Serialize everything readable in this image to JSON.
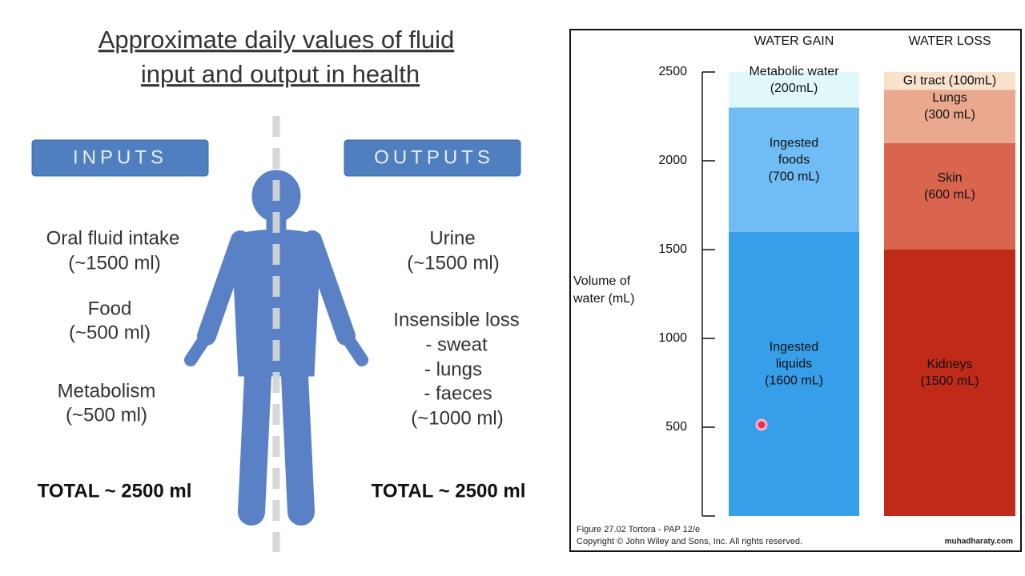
{
  "slide": {
    "title": [
      "Approximate daily values of fluid",
      "input and output in health"
    ],
    "inputs": {
      "heading": "INPUTS",
      "items": [
        [
          "Oral fluid intake",
          "(~1500 ml)"
        ],
        [
          "Food",
          "(~500 ml)"
        ],
        [
          "Metabolism",
          "(~500 ml)"
        ]
      ],
      "total": "TOTAL ~ 2500 ml"
    },
    "outputs": {
      "heading": "OUTPUTS",
      "items": [
        [
          "Urine",
          "(~1500 ml)"
        ],
        [
          "Insensible loss",
          "- sweat",
          "- lungs",
          "- faeces",
          "(~1000 ml)"
        ]
      ],
      "total": "TOTAL ~ 2500 ml"
    }
  },
  "chart_data": {
    "type": "stacked-bar",
    "categories": [
      "WATER GAIN",
      "WATER LOSS"
    ],
    "y_label": [
      "Volume of",
      "water (mL)"
    ],
    "ylim": [
      0,
      2500
    ],
    "yticks": [
      500,
      1000,
      1500,
      2000,
      2500
    ],
    "stacks": [
      [
        {
          "label": [
            "Ingested",
            "liquids",
            "(1600 mL)"
          ],
          "value": 1600,
          "color": "#379fe9"
        },
        {
          "label": [
            "Ingested",
            "foods",
            "(700 mL)"
          ],
          "value": 700,
          "color": "#70bcf5"
        },
        {
          "label": [
            "Metabolic water",
            "(200mL)"
          ],
          "value": 200,
          "color": "#e1f8fb"
        }
      ],
      [
        {
          "label": [
            "Kidneys",
            "(1500 mL)"
          ],
          "value": 1500,
          "color": "#bf2a19"
        },
        {
          "label": [
            "Skin",
            "(600 mL)"
          ],
          "value": 600,
          "color": "#d9654f"
        },
        {
          "label": [
            "Lungs",
            "(300 mL)"
          ],
          "value": 300,
          "color": "#eaa98f"
        },
        {
          "label": [
            "GI tract (100mL)"
          ],
          "value": 100,
          "color": "#f9e2cb"
        }
      ]
    ],
    "caption": [
      "Figure 27.02  Tortora - PAP 12/e",
      "Copyright © John Wiley and Sons, Inc. All rights reserved."
    ],
    "watermark": "muhadharaty.com"
  }
}
